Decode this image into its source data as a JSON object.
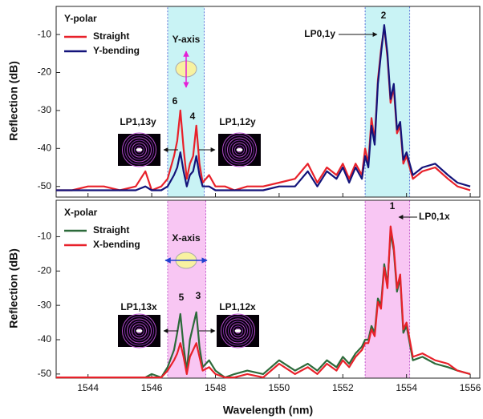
{
  "chart_data": [
    {
      "type": "line",
      "title": "Y-polar",
      "title_color": "#1c1ccc",
      "ylabel": "Reflection (dB)",
      "xlim": [
        1543,
        1556.3
      ],
      "xticks": [
        1544,
        1546,
        1548,
        1550,
        1552,
        1554,
        1556
      ],
      "ylim": [
        -52.8,
        -2.6
      ],
      "yticks": [
        -50,
        -40,
        -30,
        -20,
        -10
      ],
      "shaded_regions": [
        [
          1546.5,
          1547.65
        ],
        [
          1552.7,
          1554.1
        ]
      ],
      "shade_color": "#c9f3f5",
      "shade_edge": "#3a4fd0",
      "x": [
        1543,
        1543.5,
        1544,
        1544.5,
        1545,
        1545.5,
        1545.8,
        1546,
        1546.3,
        1546.5,
        1546.7,
        1546.8,
        1546.9,
        1547.0,
        1547.1,
        1547.2,
        1547.3,
        1547.4,
        1547.5,
        1547.6,
        1547.8,
        1548,
        1548.3,
        1548.6,
        1549,
        1549.5,
        1550,
        1550.5,
        1550.9,
        1551.2,
        1551.5,
        1551.8,
        1552.0,
        1552.2,
        1552.4,
        1552.6,
        1552.7,
        1552.8,
        1552.9,
        1553.0,
        1553.1,
        1553.2,
        1553.3,
        1553.4,
        1553.5,
        1553.6,
        1553.7,
        1553.8,
        1553.9,
        1554.0,
        1554.2,
        1554.5,
        1554.9,
        1555.3,
        1555.6,
        1556
      ],
      "series": [
        {
          "name": "Straight",
          "color": "#e8212a",
          "values": [
            -51,
            -51,
            -50,
            -50,
            -51,
            -50,
            -46,
            -51,
            -50,
            -48,
            -42,
            -38,
            -30,
            -40,
            -48,
            -44,
            -42,
            -34,
            -44,
            -49,
            -47,
            -50,
            -50,
            -51,
            -50,
            -50,
            -49,
            -48,
            -44,
            -49,
            -45,
            -47,
            -44,
            -48,
            -44,
            -47,
            -40,
            -44,
            -32,
            -38,
            -22,
            -14,
            -8,
            -16,
            -28,
            -24,
            -36,
            -34,
            -44,
            -42,
            -48,
            -46,
            -45,
            -48,
            -50,
            -51
          ]
        },
        {
          "name": "Y-bending",
          "color": "#13137a",
          "values": [
            -51,
            -51,
            -51,
            -51,
            -51,
            -51,
            -50,
            -51,
            -51,
            -50,
            -47,
            -45,
            -41,
            -46,
            -50,
            -47,
            -46,
            -42,
            -47,
            -50,
            -50,
            -51,
            -51,
            -51,
            -51,
            -51,
            -50,
            -50,
            -46,
            -50,
            -46,
            -48,
            -45,
            -49,
            -45,
            -48,
            -42,
            -45,
            -34,
            -39,
            -23,
            -15,
            -7.5,
            -15,
            -27,
            -23,
            -35,
            -33,
            -43,
            -41,
            -47,
            -45,
            -44,
            -47,
            -49,
            -50
          ]
        }
      ],
      "annotations": [
        "Y-axis",
        "6",
        "4",
        "2",
        "LP1,13y",
        "LP1,12y",
        "LP0,1y"
      ]
    },
    {
      "type": "line",
      "title": "X-polar",
      "title_color": "#e41fd6",
      "ylabel": "Reflection (dB)",
      "xlabel": "Wavelength (nm)",
      "xlim": [
        1543,
        1556.3
      ],
      "xticks": [
        1544,
        1546,
        1548,
        1550,
        1552,
        1554,
        1556
      ],
      "ylim": [
        -51.2,
        0.6
      ],
      "yticks": [
        -50,
        -40,
        -30,
        -20,
        -10
      ],
      "shaded_regions": [
        [
          1546.5,
          1547.7
        ],
        [
          1552.7,
          1554.1
        ]
      ],
      "shade_color": "#f8c6f3",
      "shade_edge": "#b23ac0",
      "x": [
        1543,
        1543.5,
        1544,
        1544.5,
        1545,
        1545.5,
        1545.8,
        1546,
        1546.3,
        1546.5,
        1546.7,
        1546.8,
        1546.9,
        1547.0,
        1547.1,
        1547.2,
        1547.3,
        1547.4,
        1547.5,
        1547.6,
        1547.8,
        1548,
        1548.3,
        1548.6,
        1549,
        1549.5,
        1550,
        1550.5,
        1550.9,
        1551.2,
        1551.5,
        1551.8,
        1552.0,
        1552.2,
        1552.4,
        1552.6,
        1552.7,
        1552.8,
        1552.9,
        1553.0,
        1553.1,
        1553.2,
        1553.3,
        1553.4,
        1553.5,
        1553.6,
        1553.7,
        1553.8,
        1553.9,
        1554.0,
        1554.2,
        1554.5,
        1554.9,
        1555.3,
        1555.6,
        1556
      ],
      "series": [
        {
          "name": "Straight",
          "color": "#2c6a3a",
          "values": [
            -51,
            -51,
            -51,
            -51,
            -51,
            -51,
            -51,
            -50,
            -51,
            -48,
            -43,
            -38,
            -32.5,
            -42,
            -49,
            -40,
            -36,
            -32,
            -42,
            -48,
            -46,
            -49,
            -51,
            -50,
            -49,
            -50,
            -46,
            -49,
            -47,
            -49,
            -46,
            -48,
            -45,
            -47,
            -44,
            -42,
            -40,
            -40,
            -36,
            -38,
            -28,
            -30,
            -18,
            -24,
            -9,
            -14,
            -26,
            -22,
            -38,
            -36,
            -46,
            -45,
            -47,
            -48,
            -49,
            -50
          ]
        },
        {
          "name": "X-bending",
          "color": "#e8212a",
          "values": [
            -51,
            -51,
            -51,
            -51,
            -51,
            -51,
            -51,
            -51,
            -51,
            -49,
            -46,
            -44,
            -41,
            -45,
            -50,
            -45,
            -43,
            -41,
            -45,
            -49,
            -48,
            -50,
            -51,
            -51,
            -50,
            -51,
            -47,
            -50,
            -48,
            -50,
            -47,
            -49,
            -46,
            -48,
            -45,
            -43,
            -41,
            -41,
            -37,
            -39,
            -29,
            -31,
            -19,
            -25,
            -7,
            -13,
            -25,
            -21,
            -37,
            -35,
            -45,
            -44,
            -46,
            -47,
            -49,
            -50
          ]
        }
      ],
      "annotations": [
        "X-axis",
        "5",
        "3",
        "1",
        "LP1,13x",
        "LP1,12x",
        "LP0,1x"
      ]
    }
  ]
}
